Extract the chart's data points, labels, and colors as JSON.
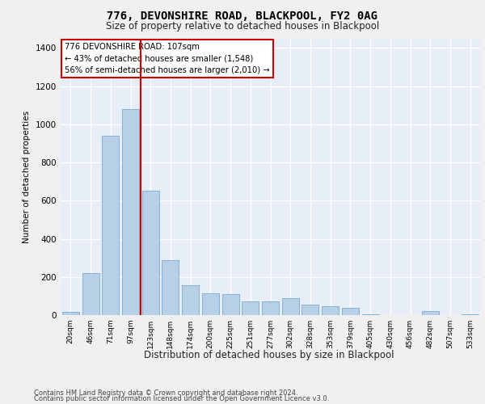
{
  "title1": "776, DEVONSHIRE ROAD, BLACKPOOL, FY2 0AG",
  "title2": "Size of property relative to detached houses in Blackpool",
  "xlabel": "Distribution of detached houses by size in Blackpool",
  "ylabel": "Number of detached properties",
  "categories": [
    "20sqm",
    "46sqm",
    "71sqm",
    "97sqm",
    "123sqm",
    "148sqm",
    "174sqm",
    "200sqm",
    "225sqm",
    "251sqm",
    "277sqm",
    "302sqm",
    "328sqm",
    "353sqm",
    "379sqm",
    "405sqm",
    "430sqm",
    "456sqm",
    "482sqm",
    "507sqm",
    "533sqm"
  ],
  "values": [
    15,
    220,
    940,
    1080,
    650,
    290,
    155,
    115,
    110,
    70,
    70,
    90,
    55,
    45,
    40,
    3,
    0,
    0,
    20,
    0,
    3
  ],
  "bar_color": "#b8cfe8",
  "bar_edge_color": "#7aaad0",
  "vline_color": "#cc0000",
  "vline_pos": 3.5,
  "annotation_line1": "776 DEVONSHIRE ROAD: 107sqm",
  "annotation_line2": "← 43% of detached houses are smaller (1,548)",
  "annotation_line3": "56% of semi-detached houses are larger (2,010) →",
  "annotation_box_edge": "#cc0000",
  "ylim": [
    0,
    1450
  ],
  "yticks": [
    0,
    200,
    400,
    600,
    800,
    1000,
    1200,
    1400
  ],
  "footer1": "Contains HM Land Registry data © Crown copyright and database right 2024.",
  "footer2": "Contains public sector information licensed under the Open Government Licence v3.0.",
  "bg_color": "#e8eef8",
  "fig_bg_color": "#f0f0f0"
}
